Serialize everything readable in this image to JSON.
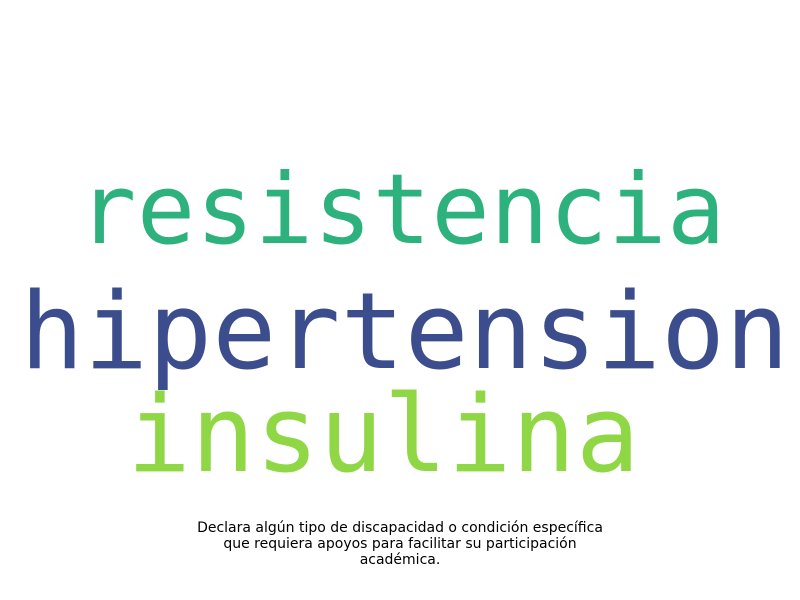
{
  "word_cloud": {
    "words": [
      {
        "text": "resistencia",
        "color": "#2db27d"
      },
      {
        "text": "hipertension",
        "color": "#3b4d8c"
      },
      {
        "text": "insulina",
        "color": "#8fd744"
      }
    ]
  },
  "caption": {
    "line1": "Declara algún tipo de discapacidad o condición específica",
    "line2": "que requiera apoyos para facilitar su participación",
    "line3": "académica."
  }
}
